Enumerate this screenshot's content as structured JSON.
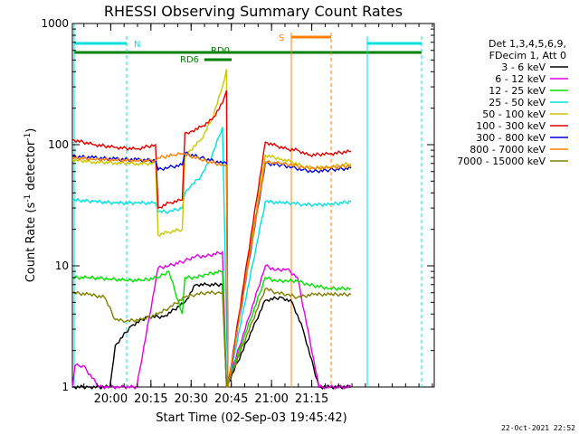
{
  "chart_data": {
    "type": "line",
    "title": "RHESSI Observing Summary Count Rates",
    "xlabel": "Start Time (02-Sep-03 19:45:42)",
    "ylabel_main": "Count Rate (s",
    "ylabel_sup1": "-1",
    "ylabel_mid": " detector",
    "ylabel_sup2": "-1",
    "ylabel_end": ")",
    "yscale": "log",
    "ylim": [
      1,
      1000
    ],
    "xlim_min": [
      0,
      135
    ],
    "xtick_labels": [
      "20:00",
      "20:15",
      "20:30",
      "20:45",
      "21:00",
      "21:15"
    ],
    "xtick_values": [
      14.3,
      29.3,
      44.3,
      59.3,
      74.3,
      89.3
    ],
    "ytick_labels": [
      "1",
      "10",
      "100",
      "1000"
    ],
    "ytick_values": [
      1,
      10,
      100,
      1000
    ],
    "legend_header": [
      "Det 1,3,4,5,6,9,",
      "FDecim 1, Att 0"
    ],
    "series": [
      {
        "name": "3 - 6 keV",
        "color": "#000000",
        "x": [
          0,
          6,
          14,
          16,
          22,
          28,
          34,
          42,
          46,
          50,
          56,
          57.5,
          72,
          78,
          82,
          86,
          92,
          96,
          104
        ],
        "values": [
          1,
          1,
          1,
          2.2,
          3.2,
          3.8,
          3.8,
          5,
          7,
          7,
          7,
          1,
          5.2,
          5.5,
          5,
          3,
          1,
          1,
          1
        ]
      },
      {
        "name": "6 - 12 keV",
        "color": "#e000e0",
        "x": [
          0,
          1,
          4,
          10,
          14,
          18,
          24,
          32,
          36,
          42,
          46,
          50,
          56,
          57.5,
          72,
          76,
          80,
          84,
          92,
          96,
          104
        ],
        "values": [
          1,
          1.5,
          1.5,
          1,
          1,
          1,
          1,
          9.6,
          10,
          11,
          12,
          12,
          13,
          1,
          10,
          9.2,
          9.4,
          8,
          1,
          1,
          1
        ]
      },
      {
        "name": "12 - 25 keV",
        "color": "#00e000",
        "x": [
          0,
          6,
          14,
          20,
          26,
          32,
          36,
          41,
          42,
          46,
          50,
          56,
          57.5,
          72,
          76,
          80,
          84,
          88,
          96,
          104
        ],
        "values": [
          8,
          8,
          7.8,
          7.6,
          7.6,
          8,
          9,
          4,
          8,
          8,
          8.5,
          9,
          1,
          8,
          7.5,
          7.5,
          7.5,
          7,
          6.5,
          6.5
        ]
      },
      {
        "name": "25 - 50 keV",
        "color": "#00e0e0",
        "x": [
          0,
          8,
          16,
          24,
          31,
          32,
          36,
          41,
          42,
          44,
          48,
          52,
          56,
          58,
          72,
          78,
          82,
          86,
          90,
          96,
          104
        ],
        "values": [
          35,
          34,
          33,
          33,
          33,
          28,
          28,
          30,
          40,
          45,
          55,
          80,
          140,
          1,
          34,
          33,
          33,
          32,
          32,
          32,
          34
        ]
      },
      {
        "name": "50 - 100 keV",
        "color": "#c8c800",
        "x": [
          0,
          8,
          16,
          24,
          31,
          32,
          36,
          41,
          42,
          44,
          48,
          52,
          56,
          57.5,
          58,
          72,
          78,
          82,
          86,
          90,
          96,
          104
        ],
        "values": [
          75,
          72,
          71,
          70,
          70,
          18,
          19,
          20,
          80,
          90,
          110,
          160,
          300,
          420,
          1,
          82,
          76,
          72,
          66,
          64,
          65,
          70
        ]
      },
      {
        "name": "100 - 300 keV",
        "color": "#e00000",
        "x": [
          0,
          8,
          16,
          24,
          31,
          32,
          36,
          41,
          42,
          44,
          48,
          52,
          56,
          57.5,
          58,
          72,
          76,
          80,
          84,
          88,
          96,
          104
        ],
        "values": [
          110,
          100,
          95,
          92,
          100,
          30,
          33,
          35,
          125,
          128,
          140,
          160,
          220,
          280,
          1,
          105,
          98,
          92,
          90,
          82,
          84,
          88
        ]
      },
      {
        "name": "300 - 800 keV",
        "color": "#0000e0",
        "x": [
          0,
          8,
          16,
          24,
          31,
          32,
          36,
          41,
          42,
          48,
          56,
          57.5,
          58,
          72,
          78,
          82,
          86,
          90,
          96,
          104
        ],
        "values": [
          80,
          78,
          76,
          75,
          74,
          62,
          65,
          68,
          85,
          78,
          70,
          70,
          1,
          70,
          68,
          65,
          62,
          60,
          62,
          64
        ]
      },
      {
        "name": "800 - 7000 keV",
        "color": "#ff8000",
        "x": [
          0,
          8,
          16,
          24,
          31,
          32,
          38,
          41,
          42,
          48,
          56,
          57.5,
          58,
          72,
          78,
          82,
          86,
          90,
          96,
          104
        ],
        "values": [
          78,
          76,
          75,
          74,
          74,
          78,
          82,
          84,
          84,
          75,
          68,
          68,
          1,
          72,
          70,
          68,
          65,
          64,
          65,
          67
        ]
      },
      {
        "name": "7000 - 15000 keV",
        "color": "#808000",
        "x": [
          0,
          6,
          12,
          16,
          20,
          26,
          32,
          36,
          42,
          46,
          50,
          54,
          56,
          57.5,
          72,
          76,
          80,
          84,
          90,
          96,
          104
        ],
        "values": [
          6,
          5.8,
          5.5,
          3.6,
          3.5,
          3.6,
          4,
          4.5,
          5.5,
          5.8,
          6,
          6,
          6,
          1,
          6.5,
          6,
          5.8,
          5.5,
          5.8,
          5.8,
          5.8
        ]
      }
    ],
    "annotations": [
      {
        "label": "N",
        "color": "#00e0e0"
      },
      {
        "label": "RD0",
        "color": "#008000"
      },
      {
        "label": "RD6",
        "color": "#008000"
      },
      {
        "label": "S",
        "color": "#ff8000"
      }
    ],
    "timestamp": "22-Oct-2021 22:52"
  }
}
